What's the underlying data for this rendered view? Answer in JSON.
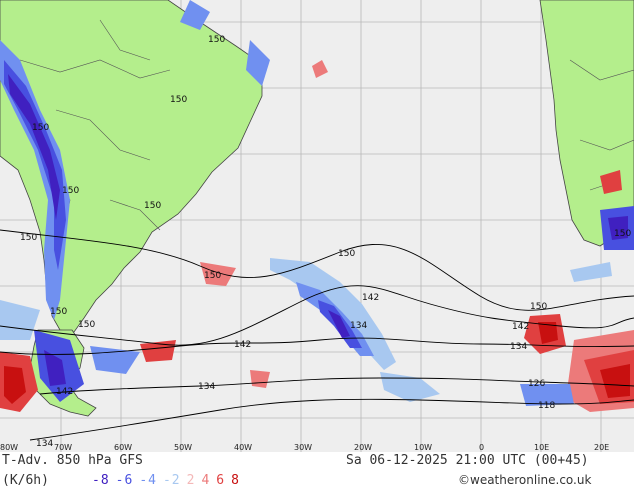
{
  "product": {
    "title": "T-Adv. 850 hPa GFS",
    "valid": "Sa 06-12-2025 21:00 UTC (00+45)",
    "units": "(K/6h)",
    "credit": "©weatheronline.co.uk"
  },
  "legend": [
    {
      "label": "-8",
      "color": "#4020c0"
    },
    {
      "label": "-6",
      "color": "#4850e0"
    },
    {
      "label": "-4",
      "color": "#7090f0"
    },
    {
      "label": "-2",
      "color": "#a8c8f0"
    },
    {
      "label": "2",
      "color": "#f4b8b8"
    },
    {
      "label": "4",
      "color": "#ec7a7a"
    },
    {
      "label": "6",
      "color": "#e04040"
    },
    {
      "label": "8",
      "color": "#c81010"
    }
  ],
  "longitude_ticks": [
    "80W",
    "70W",
    "60W",
    "50W",
    "40W",
    "30W",
    "20W",
    "10W",
    "0",
    "10E",
    "20E"
  ],
  "isohypse_labels": [
    "150",
    "150",
    "150",
    "150",
    "150",
    "150",
    "150",
    "150",
    "150",
    "150",
    "142",
    "142",
    "142",
    "142",
    "134",
    "134",
    "134",
    "134",
    "126",
    "118"
  ],
  "colors": {
    "ocean": "#eeeeee",
    "land": "#b4ee8c",
    "grid": "#b8b8b8",
    "coast": "#444444",
    "contour": "#000000"
  }
}
